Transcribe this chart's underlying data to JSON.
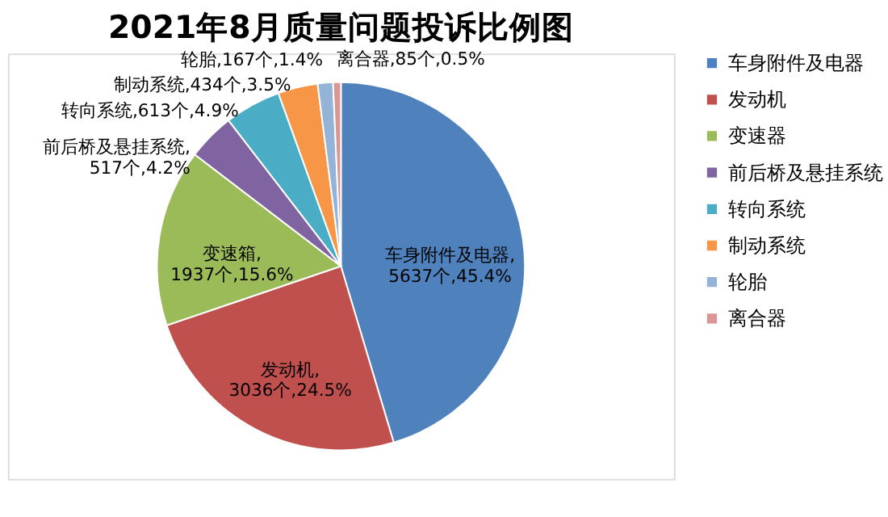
{
  "chart_data": {
    "type": "pie",
    "title": "2021年8月质量问题投诉比例图",
    "categories": [
      "车身附件及电器",
      "发动机",
      "变速器",
      "前后桥及悬挂系统",
      "转向系统",
      "制动系统",
      "轮胎",
      "离合器"
    ],
    "values": [
      5637,
      3036,
      1937,
      517,
      613,
      434,
      167,
      85
    ],
    "colors": [
      "#4f81bd",
      "#c0504d",
      "#9bbb59",
      "#8064a2",
      "#4bacc6",
      "#f79646",
      "#95b3d7",
      "#d99694"
    ],
    "value_labels": [
      "车身附件及电器,5637个,45.4%",
      "发动机,3036个,24.5%",
      "变速箱,1937个,15.6%",
      "前后桥及悬挂系统,517个,4.2%",
      "转向系统,613个,4.9%",
      "制动系统,434个,3.5%",
      "轮胎,167个,1.4%",
      "离合器,85个,0.5%"
    ],
    "legend": "right"
  }
}
